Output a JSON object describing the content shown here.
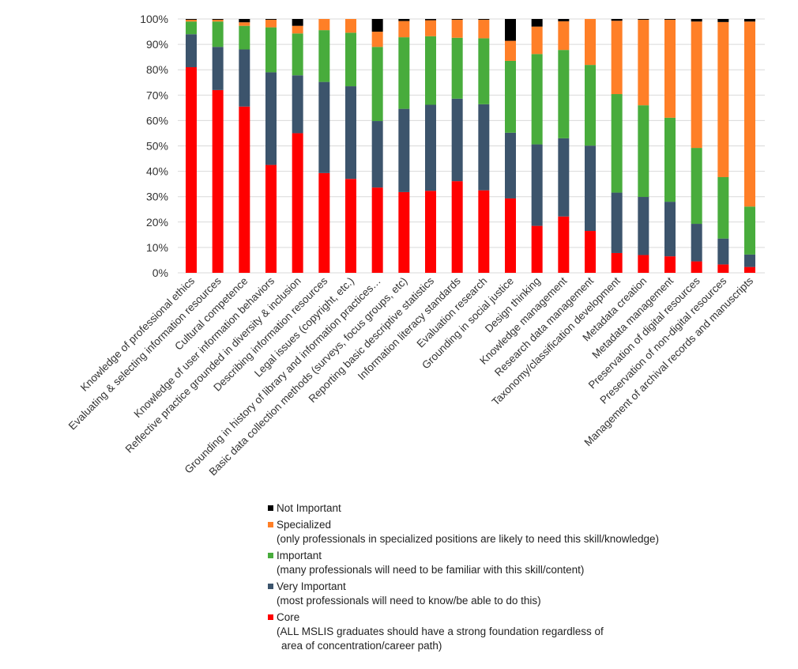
{
  "chart_data": {
    "type": "bar",
    "stacked": "percent",
    "title": "",
    "xlabel": "",
    "ylabel": "",
    "ylim": [
      0,
      100
    ],
    "yticks": [
      "0%",
      "10%",
      "20%",
      "30%",
      "40%",
      "50%",
      "60%",
      "70%",
      "80%",
      "90%",
      "100%"
    ],
    "grid": true,
    "legend_placement": "bottom",
    "categories": [
      "Knowledge of professional ethics",
      "Evaluating & selecting information resources",
      "Cultural competence",
      "Knowledge of user information behaviors",
      "Reflective practice grounded in diversity & inclusion",
      "Describing information resources",
      "Legal issues (copyright, etc.)",
      "Grounding in history of library and information practices…",
      "Basic data collection methods (surveys, focus groups, etc)",
      "Reporting basic descriptive statistics",
      "Information literacy standards",
      "Evaluation research",
      "Grounding in social justice",
      "Design thinking",
      "Knowledge management",
      "Research data management",
      "Taxonomy/classification development",
      "Metadata creation",
      "Metadata management",
      "Preservation of digital resources",
      "Preservation of non-digital resources",
      "Management of archival records and manuscripts"
    ],
    "series": [
      {
        "name": "Core",
        "color": "#FF0000",
        "values": [
          81,
          72,
          65.5,
          42.5,
          55,
          39.3,
          37,
          33.6,
          31.8,
          32.3,
          36.1,
          32.5,
          29.3,
          18.5,
          22.2,
          16.5,
          7.8,
          7,
          6.5,
          4.5,
          3.3,
          2.3
        ]
      },
      {
        "name": "Very Important",
        "color": "#3C546C",
        "values": [
          13,
          17,
          22.5,
          36.5,
          22.8,
          35.9,
          36.5,
          26.2,
          32.8,
          33.9,
          32.5,
          33.9,
          25.9,
          32.1,
          30.8,
          33.6,
          23.8,
          22.9,
          21.5,
          14.8,
          10.2,
          4.9
        ]
      },
      {
        "name": "Important",
        "color": "#48AC3C",
        "values": [
          5,
          10,
          9.3,
          17.7,
          16.5,
          20.4,
          21.1,
          29.2,
          28.2,
          27,
          24,
          26,
          28.3,
          35.6,
          34.8,
          31.8,
          38.8,
          36.1,
          33.1,
          29.9,
          24.2,
          18.9
        ]
      },
      {
        "name": "Specialized",
        "color": "#FF7F27",
        "values": [
          0.7,
          0.7,
          1.4,
          3,
          3,
          4.4,
          5.4,
          6,
          6.4,
          6.3,
          7.1,
          7.3,
          7.9,
          10.8,
          11.3,
          18.1,
          28.9,
          33.7,
          38.6,
          49.8,
          61.1,
          72.9
        ]
      },
      {
        "name": "Not Important",
        "color": "#000000",
        "values": [
          0.3,
          0.3,
          1.3,
          0.3,
          2.7,
          0,
          0,
          5,
          0.8,
          0.5,
          0.3,
          0.3,
          8.6,
          3,
          0.9,
          0,
          0.7,
          0.3,
          0.3,
          1,
          1.2,
          1
        ]
      }
    ],
    "legend": [
      {
        "name": "Not Important",
        "color": "#000000",
        "desc": "",
        "desc2": ""
      },
      {
        "name": "Specialized",
        "color": "#FF7F27",
        "desc": "(only professionals in specialized positions are likely to need this skill/knowledge)",
        "desc2": ""
      },
      {
        "name": "Important",
        "color": "#48AC3C",
        "desc": "(many professionals will need to be familiar with this skill/content)",
        "desc2": ""
      },
      {
        "name": "Very Important",
        "color": "#3C546C",
        "desc": "(most professionals will need to know/be able to do this)",
        "desc2": ""
      },
      {
        "name": "Core",
        "color": "#FF0000",
        "desc": "(ALL MSLIS graduates should have a strong foundation regardless of",
        "desc2": "area of concentration/career path)"
      }
    ]
  }
}
